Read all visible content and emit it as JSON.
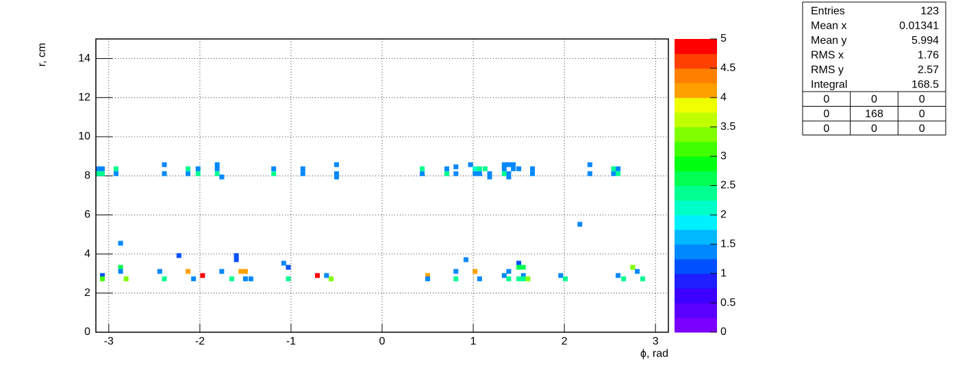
{
  "chart_data": {
    "type": "heatmap",
    "xlabel": "ϕ, rad",
    "ylabel": "r, cm",
    "xlim": [
      -3.1416,
      3.1416
    ],
    "ylim": [
      0,
      15
    ],
    "xticks": [
      -3,
      -2,
      -1,
      0,
      1,
      2,
      3
    ],
    "yticks": [
      0,
      2,
      4,
      6,
      8,
      10,
      12,
      14
    ],
    "grid": true,
    "zlim": [
      0,
      5
    ],
    "zticks": [
      0,
      0.5,
      1,
      1.5,
      2,
      2.5,
      3,
      3.5,
      4,
      4.5,
      5
    ],
    "palette": [
      "#7a00ff",
      "#5a00ff",
      "#3c00ff",
      "#1e1eff",
      "#0050ff",
      "#0088ff",
      "#00b8ff",
      "#00f0ff",
      "#00ffc8",
      "#00ff90",
      "#00ff50",
      "#00ff10",
      "#40ff00",
      "#80ff00",
      "#c0ff00",
      "#f0ff00",
      "#ffa000",
      "#ff8000",
      "#ff4000",
      "#ff0000"
    ],
    "x": [
      -3.12,
      -3.07,
      -3.12,
      -3.07,
      -2.92,
      -2.92,
      -2.39,
      -2.39,
      -2.13,
      -2.13,
      -2.02,
      -2.02,
      -1.81,
      -1.81,
      -1.81,
      -1.76,
      -1.19,
      -1.19,
      -0.87,
      -0.87,
      -0.5,
      -0.5,
      -0.5,
      0.44,
      0.44,
      0.71,
      0.71,
      0.81,
      0.81,
      0.97,
      1.02,
      1.02,
      1.07,
      1.07,
      1.13,
      1.18,
      1.18,
      1.34,
      1.34,
      1.34,
      1.39,
      1.39,
      1.39,
      1.44,
      1.44,
      1.5,
      1.65,
      1.65,
      2.28,
      2.28,
      2.54,
      2.54,
      2.59,
      2.59,
      2.17,
      -2.87,
      -2.23,
      -1.6,
      -1.6,
      0.92,
      -1.08,
      -1.03,
      1.5,
      1.5,
      1.55,
      2.75,
      -3.07,
      -3.07,
      -2.87,
      -2.87,
      -2.81,
      -2.44,
      -2.39,
      -2.13,
      -2.07,
      -1.97,
      -1.76,
      -1.65,
      -1.55,
      -1.5,
      -1.5,
      -1.44,
      -1.03,
      -0.71,
      -0.61,
      -0.56,
      0.5,
      0.5,
      0.81,
      0.81,
      1.02,
      1.07,
      1.34,
      1.39,
      1.39,
      1.55,
      1.5,
      1.55,
      1.6,
      1.96,
      2.01,
      2.59,
      2.65,
      2.8,
      2.86
    ],
    "y": [
      8.36,
      8.36,
      8.11,
      8.11,
      8.36,
      8.11,
      8.57,
      8.11,
      8.36,
      8.11,
      8.36,
      8.11,
      8.57,
      8.36,
      8.11,
      7.94,
      8.36,
      8.11,
      8.36,
      8.11,
      8.57,
      8.11,
      7.94,
      8.36,
      8.11,
      8.36,
      8.11,
      8.46,
      8.11,
      8.57,
      8.36,
      8.11,
      8.36,
      8.11,
      8.36,
      8.11,
      7.94,
      8.57,
      8.36,
      8.11,
      8.57,
      8.11,
      7.94,
      8.57,
      8.36,
      8.36,
      8.36,
      8.11,
      8.57,
      8.11,
      8.36,
      8.11,
      8.36,
      8.11,
      5.52,
      4.55,
      3.92,
      3.92,
      3.71,
      3.71,
      3.53,
      3.32,
      3.53,
      3.32,
      3.32,
      3.32,
      2.9,
      2.73,
      3.32,
      3.11,
      2.73,
      3.11,
      2.73,
      3.11,
      2.73,
      2.9,
      3.11,
      2.73,
      3.11,
      3.11,
      2.73,
      2.73,
      2.73,
      2.9,
      2.9,
      2.73,
      2.9,
      2.73,
      3.11,
      2.73,
      3.11,
      2.73,
      2.9,
      3.11,
      2.73,
      2.9,
      2.73,
      2.73,
      2.73,
      2.9,
      2.73,
      2.9,
      2.73,
      3.11,
      2.73
    ],
    "values": [
      1.3,
      1.3,
      2.3,
      2.3,
      2.3,
      1.3,
      1.3,
      1.3,
      2.3,
      1.3,
      1.3,
      2.3,
      1.3,
      1.3,
      2.3,
      1.3,
      1.3,
      2.3,
      1.3,
      1.3,
      1.3,
      1.3,
      1.3,
      2.3,
      1.3,
      1.3,
      2.3,
      1.3,
      1.3,
      1.3,
      2.1,
      1.3,
      2.3,
      1.3,
      2.3,
      1.3,
      1.3,
      1.3,
      1.3,
      2.3,
      1.3,
      1.3,
      1.3,
      1.3,
      1.3,
      1.3,
      1.3,
      1.3,
      1.3,
      1.3,
      2.3,
      1.3,
      1.3,
      2.3,
      1.3,
      1.3,
      1.2,
      1.2,
      1.2,
      1.3,
      1.3,
      1.2,
      1.2,
      2.6,
      2.6,
      3.4,
      1.2,
      3.0,
      2.6,
      1.3,
      3.3,
      1.3,
      2.3,
      4.2,
      1.3,
      4.9,
      1.3,
      2.3,
      4.2,
      4.2,
      1.3,
      1.3,
      2.3,
      4.9,
      1.3,
      3.3,
      4.2,
      1.3,
      1.3,
      2.3,
      4.2,
      1.3,
      1.3,
      1.3,
      2.3,
      1.3,
      2.3,
      2.3,
      3.3,
      1.3,
      2.3,
      1.3,
      2.3,
      1.3,
      2.3
    ]
  },
  "stats": {
    "rows": [
      [
        "Entries",
        123
      ],
      [
        "Mean x",
        0.01341
      ],
      [
        "Mean y",
        5.994
      ],
      [
        "RMS x",
        1.76
      ],
      [
        "RMS y",
        2.57
      ],
      [
        "Integral",
        168.5
      ]
    ],
    "grid": [
      [
        0,
        0,
        0
      ],
      [
        0,
        168,
        0
      ],
      [
        0,
        0,
        0
      ]
    ]
  }
}
